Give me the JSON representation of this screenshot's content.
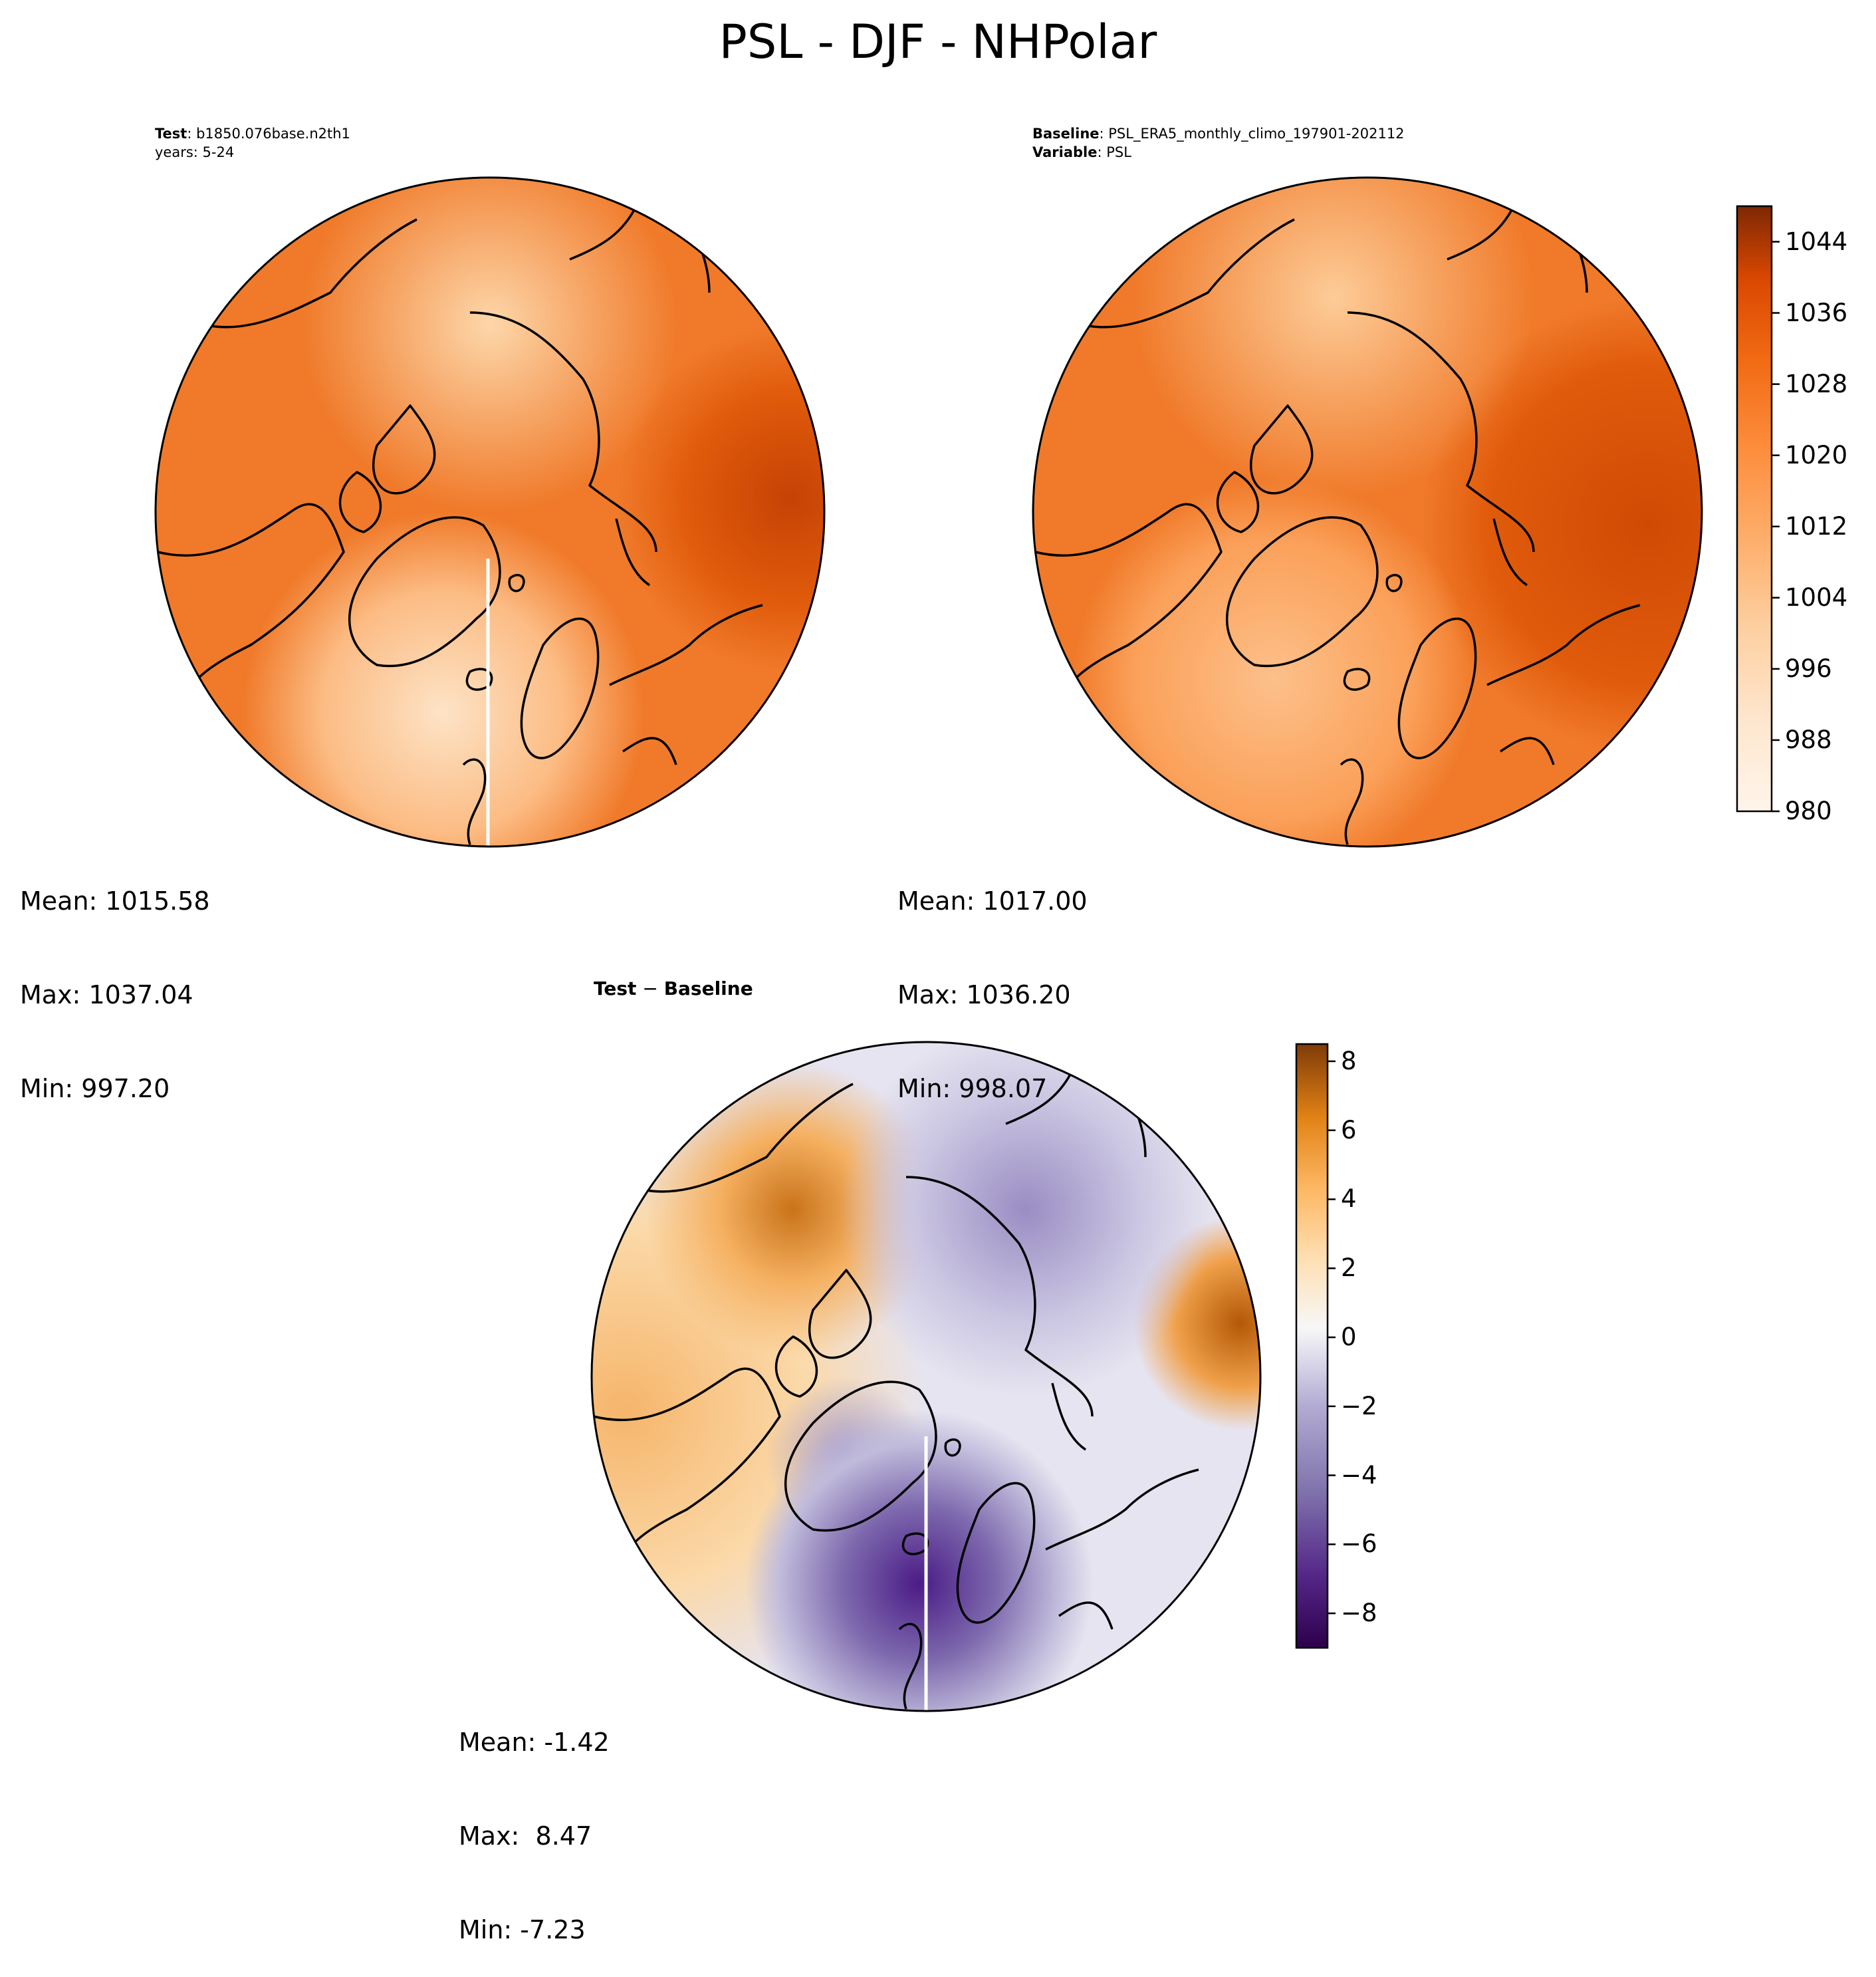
{
  "figure": {
    "title": "PSL - DJF - NHPolar"
  },
  "panels": {
    "test": {
      "label_bold": "Test",
      "label_rest": ": b1850.076base.n2th1",
      "line2": "years: 5-24",
      "stats": {
        "mean": "Mean: 1015.58",
        "max": "Max: 1037.04",
        "min": "Min: 997.20"
      }
    },
    "baseline": {
      "label_bold": "Baseline",
      "label_rest": ": PSL_ERA5_monthly_climo_197901-202112",
      "line2_bold": "Variable",
      "line2_rest": ": PSL",
      "stats": {
        "mean": "Mean: 1017.00",
        "max": "Max: 1036.20",
        "min": "Min: 998.07"
      }
    },
    "diff": {
      "label_a": "Test",
      "label_op": " − ",
      "label_b": "Baseline",
      "stats": {
        "mean": "Mean: -1.42",
        "max": "Max:  8.47",
        "min": "Min: -7.23"
      }
    }
  },
  "colorbars": {
    "absolute": {
      "colormap": "Oranges",
      "range": [
        980,
        1048
      ],
      "ticks": [
        "980",
        "988",
        "996",
        "1004",
        "1012",
        "1020",
        "1028",
        "1036",
        "1044"
      ],
      "tick_values": [
        980,
        988,
        996,
        1004,
        1012,
        1020,
        1028,
        1036,
        1044
      ]
    },
    "difference": {
      "colormap": "PuOr_r",
      "range": [
        -9,
        8.5
      ],
      "ticks": [
        "−8",
        "−6",
        "−4",
        "−2",
        "0",
        "2",
        "4",
        "6",
        "8"
      ],
      "tick_values": [
        -8,
        -6,
        -4,
        -2,
        0,
        2,
        4,
        6,
        8
      ]
    }
  },
  "colors": {
    "orange_light": "#fdd7aa",
    "orange_mid": "#f3872f",
    "orange_dark": "#d84c05",
    "purple_dark": "#3f007d",
    "brown_dark": "#7f3b08",
    "white": "#ffffff"
  }
}
